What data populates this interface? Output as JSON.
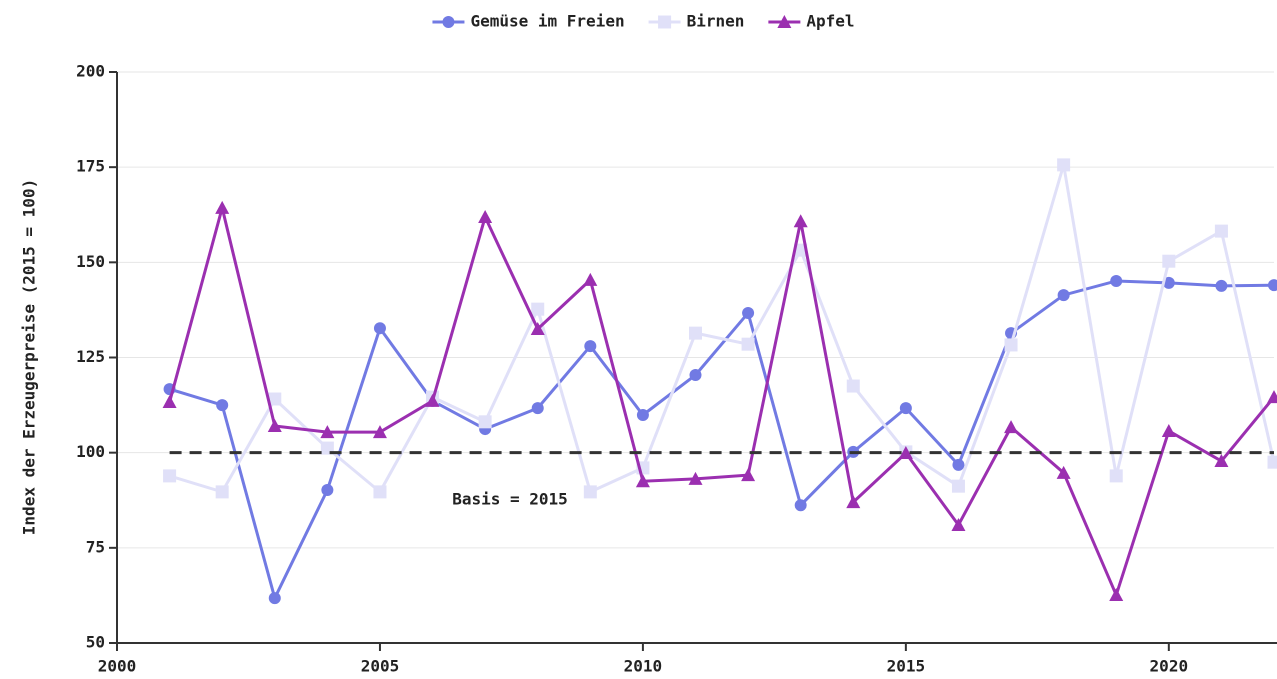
{
  "chart_data": {
    "type": "line",
    "y_label": "Index der Erzeugerpreise (2015 = 100)",
    "annotation": "Basis = 2015",
    "reference_line": 100,
    "x": [
      2001,
      2002,
      2003,
      2004,
      2005,
      2006,
      2007,
      2008,
      2009,
      2010,
      2011,
      2012,
      2013,
      2014,
      2015,
      2016,
      2017,
      2018,
      2019,
      2020,
      2021,
      2022
    ],
    "series": [
      {
        "name": "Gemüse im Freien",
        "color": "#717ae3",
        "marker": "circle",
        "values": [
          116.7,
          112.5,
          61.8,
          90.2,
          132.7,
          113.6,
          106.2,
          111.7,
          128.0,
          109.9,
          120.4,
          136.7,
          86.2,
          100.2,
          111.7,
          96.8,
          131.4,
          141.4,
          145.1,
          144.6,
          143.8,
          144.0
        ]
      },
      {
        "name": "Birnen",
        "color": "#e0e0f8",
        "marker": "square",
        "values": [
          93.9,
          89.7,
          114.1,
          101.2,
          89.7,
          114.6,
          108.1,
          137.7,
          89.7,
          96.0,
          131.4,
          128.5,
          153.2,
          117.5,
          100.2,
          91.2,
          128.3,
          175.6,
          93.9,
          150.3,
          158.2,
          97.5
        ]
      },
      {
        "name": "Apfel",
        "color": "#9b2fb0",
        "marker": "triangle",
        "values": [
          113.3,
          164.3,
          107.0,
          105.4,
          105.4,
          113.6,
          161.9,
          132.5,
          145.4,
          92.5,
          93.1,
          94.1,
          160.8,
          87.0,
          99.9,
          81.0,
          106.7,
          94.7,
          62.6,
          105.7,
          97.8,
          114.6
        ]
      }
    ],
    "xlim": [
      2000,
      2022
    ],
    "xticks": [
      2000,
      2005,
      2010,
      2015,
      2020
    ],
    "ylim": [
      50,
      200
    ],
    "yticks": [
      50,
      75,
      100,
      125,
      150,
      175,
      200
    ],
    "grid": true,
    "legend": "top"
  }
}
